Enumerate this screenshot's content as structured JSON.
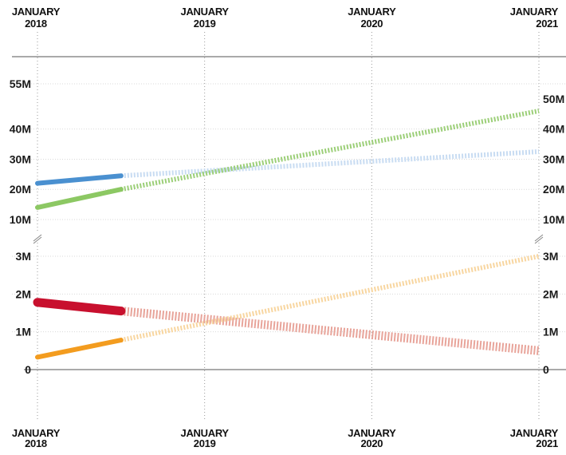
{
  "chart_data": {
    "type": "line",
    "x_axis": {
      "ticks": [
        {
          "date": "2018-01",
          "line1": "JANUARY",
          "line2": "2018"
        },
        {
          "date": "2019-01",
          "line1": "JANUARY",
          "line2": "2019"
        },
        {
          "date": "2020-01",
          "line1": "JANUARY",
          "line2": "2020"
        },
        {
          "date": "2021-01",
          "line1": "JANUARY",
          "line2": "2021"
        }
      ],
      "range": [
        "2018-01",
        "2021-01"
      ]
    },
    "panels": [
      {
        "id": "upper",
        "ylim": [
          10000000,
          55000000
        ],
        "left_ticks": [
          {
            "value": 55000000,
            "label": "55M"
          },
          {
            "value": 40000000,
            "label": "40M"
          },
          {
            "value": 30000000,
            "label": "30M"
          },
          {
            "value": 20000000,
            "label": "20M"
          },
          {
            "value": 10000000,
            "label": "10M"
          }
        ],
        "right_ticks": [
          {
            "value": 50000000,
            "label": "50M"
          },
          {
            "value": 40000000,
            "label": "40M"
          },
          {
            "value": 30000000,
            "label": "30M"
          },
          {
            "value": 20000000,
            "label": "20M"
          },
          {
            "value": 10000000,
            "label": "10M"
          }
        ],
        "series": [
          {
            "color": "#4a90d0",
            "projection_color": "#c8dcf2",
            "actual": [
              {
                "x": "2018-01",
                "y": 22000000
              },
              {
                "x": "2018-07",
                "y": 24500000
              }
            ],
            "projection": [
              {
                "x": "2018-07",
                "y": 24500000
              },
              {
                "x": "2021-01",
                "y": 32500000
              }
            ]
          },
          {
            "color": "#8cc863",
            "projection_color": "#9ccf78",
            "actual": [
              {
                "x": "2018-01",
                "y": 14000000
              },
              {
                "x": "2018-07",
                "y": 20000000
              }
            ],
            "projection": [
              {
                "x": "2018-07",
                "y": 20000000
              },
              {
                "x": "2021-01",
                "y": 46000000
              }
            ]
          }
        ]
      },
      {
        "id": "lower",
        "ylim": [
          0,
          3000000
        ],
        "left_ticks": [
          {
            "value": 3000000,
            "label": "3M"
          },
          {
            "value": 2000000,
            "label": "2M"
          },
          {
            "value": 1000000,
            "label": "1M"
          },
          {
            "value": 0,
            "label": "0"
          }
        ],
        "right_ticks": [
          {
            "value": 3000000,
            "label": "3M"
          },
          {
            "value": 2000000,
            "label": "2M"
          },
          {
            "value": 1000000,
            "label": "1M"
          },
          {
            "value": 0,
            "label": "0"
          }
        ],
        "series": [
          {
            "color": "#c8102e",
            "projection_color": "#e8a49a",
            "actual": [
              {
                "x": "2018-01",
                "y": 1780000
              },
              {
                "x": "2018-07",
                "y": 1550000
              }
            ],
            "projection": [
              {
                "x": "2018-07",
                "y": 1550000
              },
              {
                "x": "2021-01",
                "y": 500000
              }
            ]
          },
          {
            "color": "#f39c1f",
            "projection_color": "#f8d6a0",
            "actual": [
              {
                "x": "2018-01",
                "y": 330000
              },
              {
                "x": "2018-07",
                "y": 780000
              }
            ],
            "projection": [
              {
                "x": "2018-07",
                "y": 780000
              },
              {
                "x": "2021-01",
                "y": 3000000
              }
            ]
          }
        ]
      }
    ]
  }
}
